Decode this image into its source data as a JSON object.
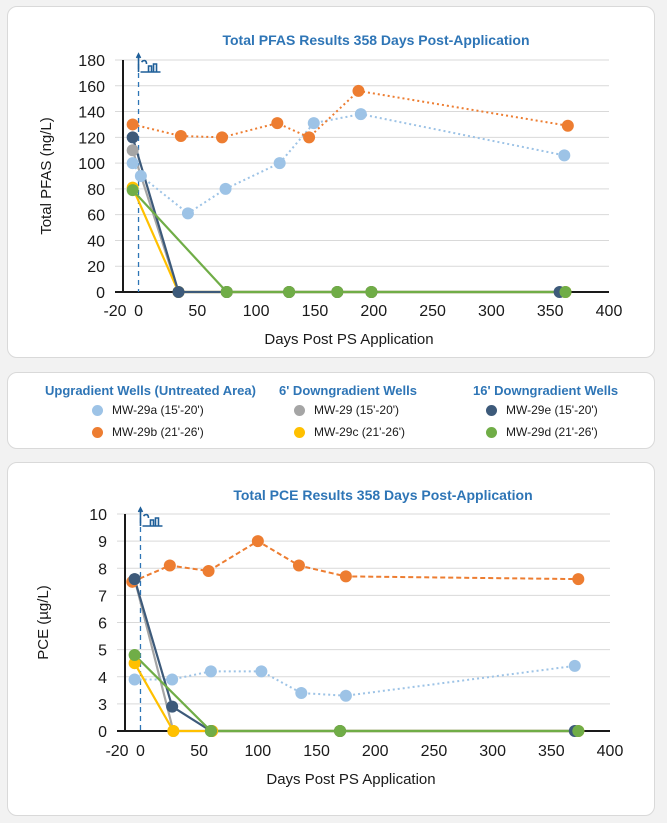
{
  "legend": {
    "groups": [
      {
        "title": "Upgradient Wells (Untreated Area)",
        "items": [
          {
            "label": "MW-29a (15'-20')",
            "color": "#9dc3e6"
          },
          {
            "label": "MW-29b (21'-26')",
            "color": "#ed7d31"
          }
        ]
      },
      {
        "title": "6' Downgradient Wells",
        "items": [
          {
            "label": "MW-29 (15'-20')",
            "color": "#a5a5a5"
          },
          {
            "label": "MW-29c (21'-26')",
            "color": "#ffc000"
          }
        ]
      },
      {
        "title": "16' Downgradient Wells",
        "items": [
          {
            "label": "MW-29e (15'-20')",
            "color": "#3d5a7a"
          },
          {
            "label": "MW-29d (21'-26')",
            "color": "#70ad47"
          }
        ]
      }
    ]
  },
  "chart_data": [
    {
      "type": "line",
      "title": "Total PFAS Results 358 Days Post-Application",
      "xlabel": "Days Post PS Application",
      "ylabel": "Total PFAS (ng/L)",
      "xlim": [
        -20,
        400
      ],
      "ylim": [
        0,
        180
      ],
      "xticks": [
        -20,
        0,
        50,
        100,
        150,
        200,
        250,
        300,
        350,
        400
      ],
      "yticks": [
        0,
        20,
        40,
        60,
        80,
        100,
        120,
        140,
        160,
        180
      ],
      "grid": true,
      "application_marker_x": 0,
      "series": [
        {
          "name": "MW-29a (15'-20')",
          "color": "#9dc3e6",
          "dash": "dotted",
          "x": [
            -5,
            2,
            42,
            74,
            120,
            149,
            189,
            362
          ],
          "y": [
            100,
            90,
            61,
            80,
            100,
            131,
            138,
            106
          ]
        },
        {
          "name": "MW-29b (21'-26')",
          "color": "#ed7d31",
          "dash": "dotted",
          "x": [
            -5,
            36,
            71,
            118,
            145,
            187,
            365
          ],
          "y": [
            130,
            121,
            120,
            131,
            120,
            156,
            129
          ]
        },
        {
          "name": "MW-29 (15'-20')",
          "color": "#a5a5a5",
          "dash": "solid",
          "x": [
            -5,
            34,
            75,
            128,
            169,
            198,
            363
          ],
          "y": [
            110,
            0,
            0,
            0,
            0,
            0,
            0
          ]
        },
        {
          "name": "MW-29c (21'-26')",
          "color": "#ffc000",
          "dash": "solid",
          "x": [
            -5,
            34,
            75,
            128,
            169,
            198,
            363
          ],
          "y": [
            81,
            0,
            0,
            0,
            0,
            0,
            0
          ]
        },
        {
          "name": "MW-29e (15'-20')",
          "color": "#3d5a7a",
          "dash": "solid",
          "x": [
            -5,
            34,
            75,
            128,
            169,
            198,
            358
          ],
          "y": [
            120,
            0,
            0,
            0,
            0,
            0,
            0
          ]
        },
        {
          "name": "MW-29d (21'-26')",
          "color": "#70ad47",
          "dash": "solid",
          "x": [
            -5,
            75,
            128,
            169,
            198,
            363
          ],
          "y": [
            79,
            0,
            0,
            0,
            0,
            0
          ]
        }
      ]
    },
    {
      "type": "line",
      "title": "Total PCE Results 358 Days Post-Application",
      "xlabel": "Days Post PS Application",
      "ylabel": "PCE (µg/L)",
      "xlim": [
        -20,
        400
      ],
      "ylim": [
        0,
        10
      ],
      "xticks": [
        -20,
        0,
        50,
        100,
        150,
        200,
        250,
        300,
        350,
        400
      ],
      "yticks": [
        0,
        3,
        4,
        5,
        6,
        7,
        8,
        9,
        10
      ],
      "grid": true,
      "application_marker_x": 0,
      "series": [
        {
          "name": "MW-29a (15'-20')",
          "color": "#9dc3e6",
          "dash": "dotted",
          "x": [
            -5,
            27,
            60,
            103,
            137,
            175,
            370
          ],
          "y": [
            3.9,
            3.9,
            4.2,
            4.2,
            3.4,
            3.3,
            4.4
          ]
        },
        {
          "name": "MW-29b (21'-26')",
          "color": "#ed7d31",
          "dash": "dashed",
          "x": [
            -7,
            25,
            58,
            100,
            135,
            175,
            373
          ],
          "y": [
            7.5,
            8.1,
            7.9,
            9.0,
            8.1,
            7.7,
            7.6
          ]
        },
        {
          "name": "MW-29 (15'-20')",
          "color": "#a5a5a5",
          "dash": "solid",
          "x": [
            -5,
            28,
            61,
            170,
            373
          ],
          "y": [
            7.6,
            0,
            0,
            0,
            0
          ]
        },
        {
          "name": "MW-29c (21'-26')",
          "color": "#ffc000",
          "dash": "solid",
          "x": [
            -5,
            28,
            61,
            170,
            373
          ],
          "y": [
            4.5,
            0,
            0,
            0,
            0
          ]
        },
        {
          "name": "MW-29e (15'-20')",
          "color": "#3d5a7a",
          "dash": "solid",
          "x": [
            -5,
            27,
            60,
            170,
            370
          ],
          "y": [
            7.6,
            2.7,
            0,
            0,
            0
          ]
        },
        {
          "name": "MW-29d (21'-26')",
          "color": "#70ad47",
          "dash": "solid",
          "x": [
            -5,
            60,
            170,
            373
          ],
          "y": [
            4.8,
            0,
            0,
            0
          ]
        }
      ]
    }
  ]
}
